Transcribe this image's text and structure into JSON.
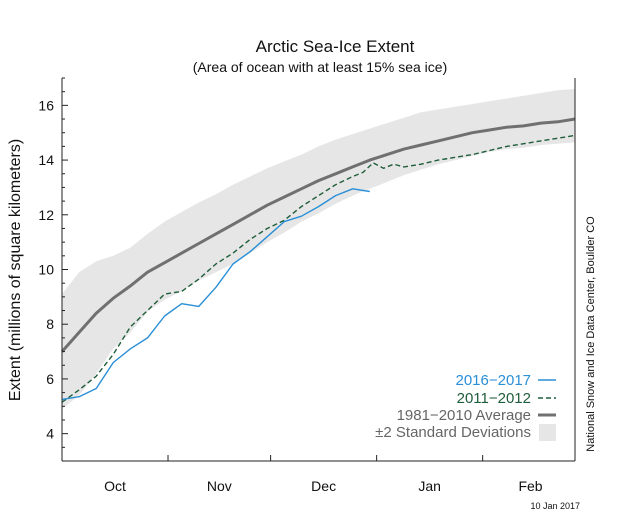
{
  "chart_data": {
    "type": "line",
    "title": "Arctic Sea-Ice Extent",
    "subtitle": "(Area of ocean with at least 15% sea ice)",
    "ylabel": "Extent (millions of square kilometers)",
    "xlabel": "",
    "ylim": [
      3,
      17
    ],
    "xlim": [
      0,
      150
    ],
    "yticks": [
      4,
      6,
      8,
      10,
      12,
      14,
      16
    ],
    "month_boundaries": [
      0,
      31,
      61,
      92,
      123,
      151
    ],
    "month_labels": [
      {
        "label": "Oct",
        "x": 15.5
      },
      {
        "label": "Nov",
        "x": 46
      },
      {
        "label": "Dec",
        "x": 76.5
      },
      {
        "label": "Jan",
        "x": 107.5
      },
      {
        "label": "Feb",
        "x": 137
      }
    ],
    "grid": false,
    "legend_position": "bottom-right",
    "series": [
      {
        "name": "1981−2010 Average",
        "style": "solid",
        "color": "#707070",
        "x": [
          0,
          5,
          10,
          15,
          20,
          25,
          30,
          35,
          40,
          45,
          50,
          55,
          60,
          65,
          70,
          75,
          80,
          85,
          90,
          95,
          100,
          105,
          110,
          115,
          120,
          125,
          130,
          135,
          140,
          145,
          150
        ],
        "y": [
          7.0,
          7.7,
          8.4,
          8.95,
          9.4,
          9.9,
          10.25,
          10.6,
          10.95,
          11.3,
          11.65,
          12.0,
          12.35,
          12.65,
          12.95,
          13.25,
          13.5,
          13.75,
          14.0,
          14.2,
          14.4,
          14.55,
          14.7,
          14.85,
          15.0,
          15.1,
          15.2,
          15.25,
          15.35,
          15.4,
          15.5
        ]
      },
      {
        "name": "2011−2012",
        "style": "dashed",
        "color": "#1f5e3a",
        "x": [
          0,
          5,
          10,
          15,
          20,
          25,
          30,
          35,
          40,
          45,
          50,
          55,
          60,
          65,
          70,
          75,
          80,
          85,
          88,
          91,
          94,
          97,
          100,
          105,
          110,
          115,
          120,
          125,
          130,
          135,
          140,
          145,
          150
        ],
        "y": [
          5.15,
          5.6,
          6.1,
          6.9,
          7.9,
          8.5,
          9.1,
          9.2,
          9.65,
          10.2,
          10.6,
          11.1,
          11.5,
          11.8,
          12.3,
          12.7,
          13.1,
          13.4,
          13.55,
          13.9,
          13.7,
          13.85,
          13.75,
          13.85,
          14.0,
          14.1,
          14.2,
          14.35,
          14.5,
          14.6,
          14.7,
          14.8,
          14.9
        ]
      },
      {
        "name": "2016−2017",
        "style": "solid",
        "color": "#2a8fd6",
        "x": [
          0,
          5,
          10,
          15,
          20,
          25,
          30,
          35,
          40,
          45,
          50,
          55,
          60,
          65,
          70,
          75,
          80,
          85,
          90
        ],
        "y": [
          5.25,
          5.35,
          5.65,
          6.6,
          7.1,
          7.5,
          8.3,
          8.75,
          8.65,
          9.35,
          10.2,
          10.65,
          11.2,
          11.75,
          11.95,
          12.3,
          12.7,
          12.95,
          12.85
        ]
      }
    ],
    "std_band": {
      "name": "±2 Standard Deviations",
      "color": "#e6e6e6",
      "x": [
        0,
        5,
        10,
        15,
        20,
        25,
        30,
        35,
        40,
        45,
        50,
        55,
        60,
        65,
        70,
        75,
        80,
        85,
        90,
        95,
        100,
        105,
        110,
        115,
        120,
        125,
        130,
        135,
        140,
        145,
        150
      ],
      "upper": [
        9.1,
        9.9,
        10.3,
        10.5,
        10.8,
        11.3,
        11.75,
        12.1,
        12.45,
        12.75,
        13.1,
        13.4,
        13.7,
        13.95,
        14.2,
        14.5,
        14.75,
        14.95,
        15.15,
        15.35,
        15.55,
        15.75,
        15.85,
        15.95,
        16.05,
        16.15,
        16.25,
        16.35,
        16.45,
        16.55,
        16.6
      ],
      "lower": [
        4.9,
        5.4,
        6.2,
        7.1,
        7.7,
        8.45,
        8.9,
        9.2,
        9.6,
        9.9,
        10.2,
        10.6,
        11.0,
        11.35,
        11.75,
        12.05,
        12.4,
        12.7,
        12.95,
        13.2,
        13.45,
        13.65,
        13.85,
        14.0,
        14.15,
        14.3,
        14.4,
        14.45,
        14.55,
        14.6,
        14.65
      ]
    },
    "legend": [
      {
        "label": "2016−2017",
        "color": "#2a8fd6",
        "style": "solid"
      },
      {
        "label": "2011−2012",
        "color": "#1f5e3a",
        "style": "dashed"
      },
      {
        "label": "1981−2010 Average",
        "color": "#707070",
        "style": "solid"
      },
      {
        "label": "±2 Standard Deviations",
        "color": "#e6e6e6",
        "style": "band"
      }
    ],
    "side_credit": "National Snow and Ice Data Center, Boulder CO",
    "date_stamp": "10 Jan 2017"
  }
}
